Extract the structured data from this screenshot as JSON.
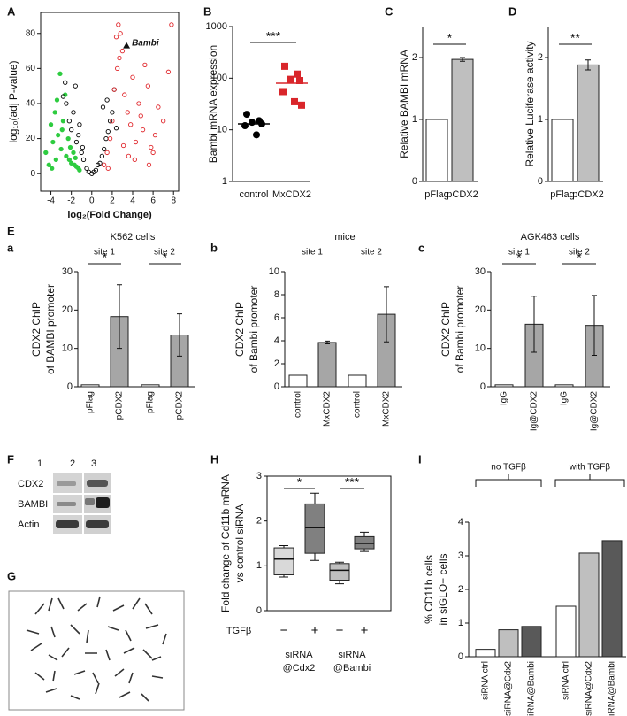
{
  "chart_data": [
    {
      "type": "scatter",
      "panel": "A",
      "xlabel": "log₂(Fold Change)",
      "ylabel": [
        "log₁₀(adj P-value)"
      ],
      "xlim": [
        -5,
        8.5
      ],
      "ylim": [
        -10,
        92
      ],
      "xticks": [
        -4,
        -2,
        0,
        2,
        4,
        6,
        8
      ],
      "yticks": [
        0,
        20,
        40,
        60,
        80
      ],
      "series": [
        {
          "color": "#2ecc40",
          "filled": true,
          "x": [
            -4.5,
            -4.2,
            -4.0,
            -3.8,
            -3.6,
            -3.5,
            -3.3,
            -3.1,
            -3.0,
            -2.8,
            -2.6,
            -2.5,
            -2.3,
            -2.1,
            -2.0,
            -1.8,
            -1.6,
            -1.5,
            -1.3,
            -1.2,
            -3.9,
            -3.4,
            -2.9,
            -2.2,
            -1.7
          ],
          "values": [
            12,
            5,
            28,
            18,
            35,
            8,
            22,
            57,
            14,
            30,
            45,
            10,
            20,
            15,
            6,
            12,
            9,
            4,
            3,
            2,
            3,
            42,
            25,
            8,
            5
          ]
        },
        {
          "color": "#000000",
          "filled": false,
          "x": [
            -2.5,
            -2.2,
            -2.0,
            -1.8,
            -1.5,
            -1.3,
            -1.0,
            -0.8,
            -0.5,
            -0.3,
            0,
            0.2,
            0.4,
            0.6,
            0.8,
            1.0,
            1.2,
            1.4,
            1.6,
            1.8,
            2.0,
            2.2,
            -1.6,
            -1.2,
            -0.9,
            1.1,
            1.5,
            -2.6,
            -2.8,
            2.4
          ],
          "values": [
            40,
            30,
            25,
            35,
            18,
            22,
            12,
            8,
            3,
            1,
            0,
            1,
            2,
            5,
            6,
            10,
            14,
            20,
            24,
            30,
            35,
            48,
            50,
            28,
            15,
            38,
            42,
            52,
            44,
            26
          ]
        },
        {
          "color": "#e0262b",
          "filled": false,
          "x": [
            1.2,
            1.5,
            1.8,
            2.0,
            2.2,
            2.5,
            2.8,
            3.0,
            3.2,
            3.5,
            3.8,
            4.0,
            4.3,
            4.6,
            5.0,
            5.2,
            5.5,
            5.8,
            6.2,
            6.5,
            7.0,
            7.5,
            2.4,
            2.7,
            3.6,
            4.2,
            4.8,
            1.6,
            3.1,
            6.0,
            2.6,
            5.6,
            7.8
          ],
          "values": [
            5,
            12,
            20,
            30,
            48,
            60,
            80,
            70,
            45,
            35,
            28,
            55,
            18,
            40,
            25,
            62,
            50,
            15,
            22,
            38,
            30,
            58,
            78,
            66,
            10,
            8,
            33,
            3,
            16,
            12,
            85,
            5,
            85
          ]
        }
      ],
      "annotation": {
        "text": "Bambi",
        "x": 3.4,
        "y": 73
      }
    },
    {
      "type": "strip",
      "panel": "B",
      "ylabel": [
        "Bambi mRNA expression"
      ],
      "categories": [
        "control",
        "MxCDX2"
      ],
      "points": [
        [
          20,
          15,
          14,
          13,
          12,
          8
        ],
        [
          170,
          120,
          95,
          90,
          55,
          35,
          30
        ]
      ],
      "centers": [
        13,
        80
      ],
      "colors": [
        "#000000",
        "#d9262b"
      ],
      "markers": [
        "circle",
        "square"
      ],
      "log_scale": true,
      "ylim": [
        1,
        1000
      ],
      "yticks": [
        1,
        10,
        100,
        1000
      ],
      "significance": [
        "***"
      ]
    },
    {
      "type": "bar",
      "panel": "C",
      "ylabel": [
        "Relative BAMBI mRNA"
      ],
      "categories": [
        "pFlag",
        "pCDX2"
      ],
      "values": [
        1,
        1.97
      ],
      "errors": [
        null,
        0.03
      ],
      "colors": [
        "#ffffff",
        "#bfbfbf"
      ],
      "ylim": [
        0,
        2.5
      ],
      "yticks": [
        0,
        1,
        2
      ],
      "significance": [
        "*"
      ]
    },
    {
      "type": "bar",
      "panel": "D",
      "ylabel": [
        "Relative Luciferase activity"
      ],
      "categories": [
        "pFlag",
        "pCDX2"
      ],
      "values": [
        1,
        1.88
      ],
      "errors": [
        null,
        0.08
      ],
      "colors": [
        "#ffffff",
        "#bfbfbf"
      ],
      "ylim": [
        0,
        2.5
      ],
      "yticks": [
        0,
        1,
        2
      ],
      "significance": [
        "**"
      ]
    },
    {
      "type": "bar",
      "section": "E",
      "panel": "a",
      "title": "K562 cells",
      "groups": [
        "site 1",
        "site 2"
      ],
      "categories": [
        "pFlag",
        "pCDX2",
        "pFlag",
        "pCDX2"
      ],
      "values": [
        0.5,
        18.3,
        0.5,
        13.5
      ],
      "errors": [
        null,
        8.3,
        null,
        5.5
      ],
      "colors": [
        "#ffffff",
        "#a6a6a6",
        "#ffffff",
        "#a6a6a6"
      ],
      "ylabel": [
        "CDX2 ChIP",
        "of BAMBI promoter"
      ],
      "ylim": [
        0,
        30
      ],
      "yticks": [
        0,
        10,
        20,
        30
      ],
      "significance": [
        "*",
        "*"
      ]
    },
    {
      "type": "bar",
      "panel": "b",
      "title": "mice",
      "groups": [
        "site 1",
        "site 2"
      ],
      "categories": [
        "control",
        "MxCDX2",
        "control",
        "MxCDX2"
      ],
      "values": [
        1,
        3.85,
        1,
        6.3
      ],
      "errors": [
        null,
        0.12,
        null,
        2.4
      ],
      "colors": [
        "#ffffff",
        "#a6a6a6",
        "#ffffff",
        "#a6a6a6"
      ],
      "ylabel": [
        "CDX2 ChIP",
        "of Bambi promoter"
      ],
      "ylim": [
        0,
        10
      ],
      "yticks": [
        0,
        2,
        4,
        6,
        8,
        10
      ]
    },
    {
      "type": "bar",
      "panel": "c",
      "title": "AGK463 cells",
      "groups": [
        "site 1",
        "site 2"
      ],
      "categories": [
        "IgG",
        "Ig@CDX2",
        "IgG",
        "Ig@CDX2"
      ],
      "values": [
        0.5,
        16.3,
        0.5,
        16
      ],
      "errors": [
        null,
        7.3,
        null,
        7.8
      ],
      "colors": [
        "#ffffff",
        "#a6a6a6",
        "#ffffff",
        "#a6a6a6"
      ],
      "ylabel": [
        "CDX2 ChIP",
        "of Bambi promoter"
      ],
      "ylim": [
        0,
        30
      ],
      "yticks": [
        0,
        10,
        20,
        30
      ],
      "significance": [
        "*",
        "*"
      ]
    },
    {
      "type": "box",
      "panel": "H",
      "ylabel": [
        "Fold change of Cd11b mRNA",
        "vs control siRNA"
      ],
      "factor": "TGFβ",
      "categories": [
        "−",
        "+",
        "−",
        "+"
      ],
      "groups": [
        [
          "siRNA",
          "@Cdx2"
        ],
        [
          "siRNA",
          "@Bambi"
        ]
      ],
      "boxes": [
        {
          "min": 0.75,
          "q1": 0.8,
          "median": 1.15,
          "q3": 1.4,
          "max": 1.45
        },
        {
          "min": 1.12,
          "q1": 1.28,
          "median": 1.85,
          "q3": 2.38,
          "max": 2.62
        },
        {
          "min": 0.6,
          "q1": 0.68,
          "median": 0.9,
          "q3": 1.05,
          "max": 1.08
        },
        {
          "min": 1.32,
          "q1": 1.38,
          "median": 1.5,
          "q3": 1.65,
          "max": 1.75
        }
      ],
      "colors": [
        "#d9d9d9",
        "#808080",
        "#bfbfbf",
        "#808080"
      ],
      "ylim": [
        0,
        3
      ],
      "yticks": [
        0,
        1,
        2,
        3
      ],
      "significance": [
        "*",
        "***"
      ]
    },
    {
      "type": "bar",
      "panel": "I",
      "ylabel": [
        "% CD11b cells",
        "in siGLO+ cells"
      ],
      "groups": [
        "no TGFβ",
        "with TGFβ"
      ],
      "categories": [
        "siRNA ctrl",
        "siRNA@Cdx2",
        "siRNA@Bambi",
        "siRNA ctrl",
        "siRNA@Cdx2",
        "siRNA@Bambi"
      ],
      "values": [
        0.22,
        0.8,
        0.9,
        1.5,
        3.08,
        3.45
      ],
      "colors": [
        "#ffffff",
        "#bfbfbf",
        "#595959",
        "#ffffff",
        "#bfbfbf",
        "#595959"
      ],
      "ylim": [
        0,
        4
      ],
      "yticks": [
        0,
        1,
        2,
        3,
        4
      ]
    }
  ],
  "blot": {
    "panel": "F",
    "lanes": [
      "1",
      "2",
      "3"
    ],
    "rows": [
      "CDX2",
      "BAMBI",
      "Actin"
    ]
  },
  "spread": {
    "panel": "G"
  }
}
